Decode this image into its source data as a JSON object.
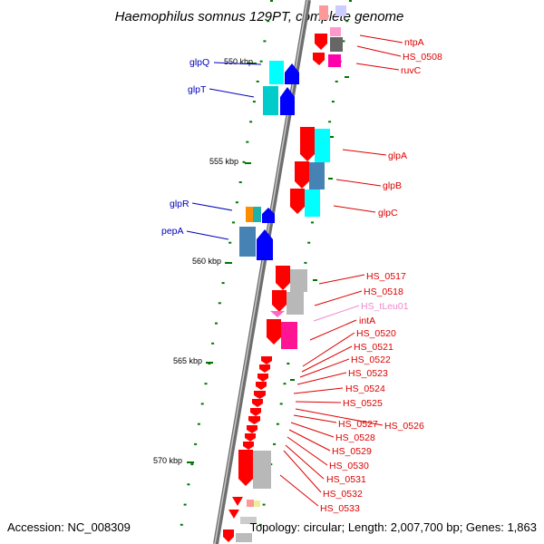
{
  "title": "Haemophilus somnus 129PT, complete genome",
  "footer": {
    "accession": "Accession: NC_008309",
    "summary": "Topology: circular; Length: 2,007,700 bp; Genes: 1,863"
  },
  "colors": {
    "left_label": "#0000bb",
    "right_label": "#dd0000",
    "trna_label": "#ee88cc",
    "red": "#ff0000",
    "cyan": "#00f0f0",
    "steelblue": "#4682b4",
    "grey": "#b0b0b0",
    "magenta": "#ff1493",
    "blue": "#0000ff",
    "orange": "#ff8c00",
    "backbone": "#808080",
    "tick": "#007700"
  },
  "scale": {
    "ticks": [
      {
        "label": "550 kbp"
      },
      {
        "label": "555 kbp"
      },
      {
        "label": "560 kbp"
      },
      {
        "label": "565 kbp"
      },
      {
        "label": "570 kbp"
      }
    ]
  },
  "left_labels": [
    {
      "text": "glpQ"
    },
    {
      "text": "glpT"
    },
    {
      "text": "glpR"
    },
    {
      "text": "pepA"
    }
  ],
  "right_labels": [
    {
      "text": "ntpA"
    },
    {
      "text": "HS_0508"
    },
    {
      "text": "ruvC"
    },
    {
      "text": "glpA"
    },
    {
      "text": "glpB"
    },
    {
      "text": "glpC"
    },
    {
      "text": "HS_0517"
    },
    {
      "text": "HS_0518"
    },
    {
      "text": "HS_tLeu01"
    },
    {
      "text": "intA"
    },
    {
      "text": "HS_0520"
    },
    {
      "text": "HS_0521"
    },
    {
      "text": "HS_0522"
    },
    {
      "text": "HS_0523"
    },
    {
      "text": "HS_0524"
    },
    {
      "text": "HS_0525"
    },
    {
      "text": "HS_0526"
    },
    {
      "text": "HS_0527"
    },
    {
      "text": "HS_0528"
    },
    {
      "text": "HS_0529"
    },
    {
      "text": "HS_0530"
    },
    {
      "text": "HS_0531"
    },
    {
      "text": "HS_0532"
    },
    {
      "text": "HS_0533"
    }
  ]
}
